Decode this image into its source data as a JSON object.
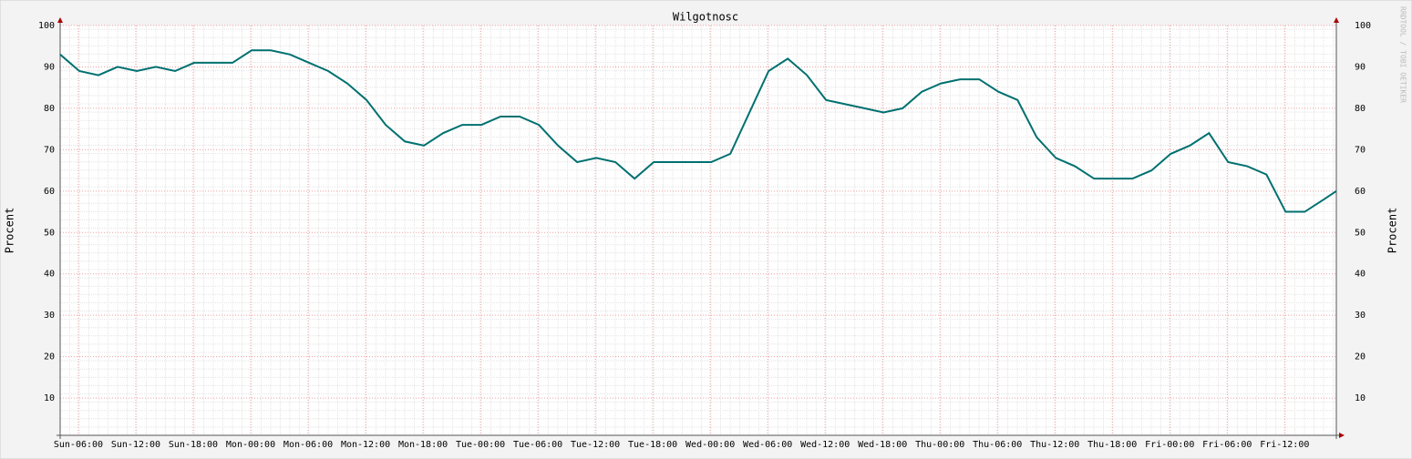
{
  "chart_data": {
    "type": "line",
    "title": "Wilgotnosc",
    "y_label": "Procent",
    "watermark": "RRDTOOL / TOBI OETIKER",
    "x": [
      0,
      2,
      4,
      6,
      8,
      10,
      12,
      14,
      16,
      18,
      20,
      22,
      24,
      26,
      28,
      30,
      32,
      34,
      36,
      38,
      40,
      42,
      44,
      46,
      48,
      50,
      52,
      54,
      56,
      58,
      60,
      62,
      64,
      66,
      68,
      70,
      72,
      74,
      76,
      78,
      80,
      82,
      84,
      86,
      88,
      90,
      92,
      94,
      96,
      98,
      100,
      102,
      104,
      106,
      108,
      110,
      112,
      114,
      116,
      118,
      120,
      122,
      124,
      126,
      128,
      130,
      132,
      133.3
    ],
    "series": [
      {
        "name": "Wilgotnosc",
        "color": "#007070",
        "values": [
          93,
          89,
          88,
          90,
          89,
          90,
          89,
          91,
          91,
          91,
          94,
          94,
          93,
          91,
          89,
          86,
          82,
          76,
          72,
          71,
          74,
          76,
          76,
          78,
          78,
          76,
          71,
          67,
          68,
          67,
          63,
          67,
          67,
          67,
          67,
          69,
          79,
          89,
          92,
          88,
          82,
          81,
          80,
          79,
          80,
          84,
          86,
          87,
          87,
          84,
          82,
          73,
          68,
          66,
          63,
          63,
          63,
          65,
          69,
          71,
          74,
          67,
          66,
          64,
          55,
          55,
          58,
          60
        ]
      }
    ],
    "xlim": [
      0,
      133.3
    ],
    "xticks": [
      {
        "value": 1.9,
        "label": "Sun-06:00"
      },
      {
        "value": 7.9,
        "label": "Sun-12:00"
      },
      {
        "value": 13.9,
        "label": "Sun-18:00"
      },
      {
        "value": 19.9,
        "label": "Mon-00:00"
      },
      {
        "value": 25.9,
        "label": "Mon-06:00"
      },
      {
        "value": 31.9,
        "label": "Mon-12:00"
      },
      {
        "value": 37.9,
        "label": "Mon-18:00"
      },
      {
        "value": 43.9,
        "label": "Tue-00:00"
      },
      {
        "value": 49.9,
        "label": "Tue-06:00"
      },
      {
        "value": 55.9,
        "label": "Tue-12:00"
      },
      {
        "value": 61.9,
        "label": "Tue-18:00"
      },
      {
        "value": 67.9,
        "label": "Wed-00:00"
      },
      {
        "value": 73.9,
        "label": "Wed-06:00"
      },
      {
        "value": 79.9,
        "label": "Wed-12:00"
      },
      {
        "value": 85.9,
        "label": "Wed-18:00"
      },
      {
        "value": 91.9,
        "label": "Thu-00:00"
      },
      {
        "value": 97.9,
        "label": "Thu-06:00"
      },
      {
        "value": 103.9,
        "label": "Thu-12:00"
      },
      {
        "value": 109.9,
        "label": "Thu-18:00"
      },
      {
        "value": 115.9,
        "label": "Fri-00:00"
      },
      {
        "value": 121.9,
        "label": "Fri-06:00"
      },
      {
        "value": 127.9,
        "label": "Fri-12:00"
      }
    ],
    "ylim": [
      1,
      100
    ],
    "yticks": [
      10,
      20,
      30,
      40,
      50,
      60,
      70,
      80,
      90,
      100
    ],
    "grid": true
  }
}
